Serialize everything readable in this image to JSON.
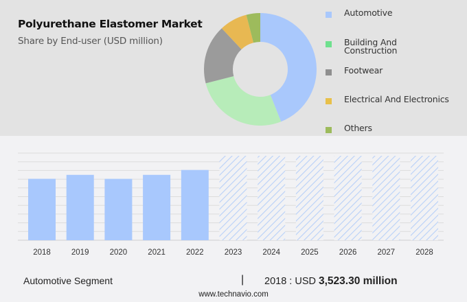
{
  "header": {
    "title": "Polyurethane Elastomer Market",
    "subtitle": "Share by End-user (USD million)"
  },
  "legend": [
    {
      "label": "Automotive",
      "color": "#a9c8fc"
    },
    {
      "label": "Building And Construction",
      "line1": "Building And",
      "line2": "Construction",
      "color": "#6fe08e"
    },
    {
      "label": "Footwear",
      "color": "#8f8f8f"
    },
    {
      "label": "Electrical And Electronics",
      "color": "#e8c04a"
    },
    {
      "label": "Others",
      "color": "#9dbb5c"
    }
  ],
  "footer": {
    "segment": "Automotive Segment",
    "separator": "|",
    "value_prefix": "2018 : USD ",
    "value_bold": "3,523.30 million",
    "url": "www.technavio.com"
  },
  "chart_data": [
    {
      "type": "pie",
      "title": "Polyurethane Elastomer Market",
      "subtitle": "Share by End-user (USD million)",
      "donut": true,
      "categories": [
        "Automotive",
        "Building And Construction",
        "Footwear",
        "Electrical And Electronics",
        "Others"
      ],
      "values": [
        44,
        27,
        17,
        8,
        4
      ],
      "colors": [
        "#a9c8fc",
        "#b7ecb9",
        "#9b9b9b",
        "#e8b852",
        "#9dbb5c"
      ],
      "legend_position": "right"
    },
    {
      "type": "bar",
      "title": "Automotive Segment",
      "categories": [
        "2018",
        "2019",
        "2020",
        "2021",
        "2022",
        "2023",
        "2024",
        "2025",
        "2026",
        "2027",
        "2028"
      ],
      "values": [
        3523.3,
        3750,
        3520,
        3750,
        4030,
        null,
        null,
        null,
        null,
        null,
        null
      ],
      "forecast": [
        false,
        false,
        false,
        false,
        false,
        true,
        true,
        true,
        true,
        true,
        true
      ],
      "annotation": "2018 : USD 3,523.30 million",
      "xlabel": "",
      "ylabel": "",
      "ylim": [
        0,
        5000
      ],
      "grid": true,
      "bar_color": "#a8c8fd"
    }
  ]
}
